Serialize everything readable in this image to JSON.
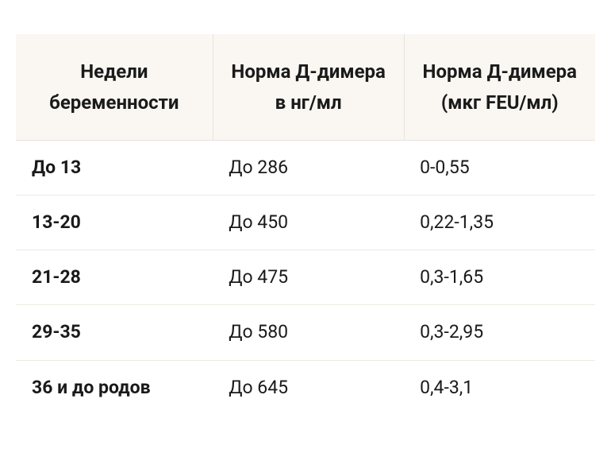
{
  "table": {
    "type": "table",
    "background_color": "#ffffff",
    "header_background": "#faf7f2",
    "border_color": "#eeeae2",
    "header_border_color": "#e8e4dc",
    "text_color": "#1a1a1a",
    "header_fontsize": 24,
    "body_fontsize": 23,
    "columns": [
      {
        "label": "Недели беременности",
        "width_pct": 34
      },
      {
        "label": "Норма Д-димера в нг/мл",
        "width_pct": 33
      },
      {
        "label": "Норма Д-димера (мкг FEU/мл)",
        "width_pct": 33
      }
    ],
    "rows": [
      {
        "weeks": "До 13",
        "ng_ml": "До 286",
        "feu_ml": "0-0,55"
      },
      {
        "weeks": "13-20",
        "ng_ml": "До 450",
        "feu_ml": "0,22-1,35"
      },
      {
        "weeks": "21-28",
        "ng_ml": "До 475",
        "feu_ml": "0,3-1,65"
      },
      {
        "weeks": "29-35",
        "ng_ml": "До 580",
        "feu_ml": "0,3-2,95"
      },
      {
        "weeks": "36 и до родов",
        "ng_ml": "До 645",
        "feu_ml": "0,4-3,1"
      }
    ]
  }
}
